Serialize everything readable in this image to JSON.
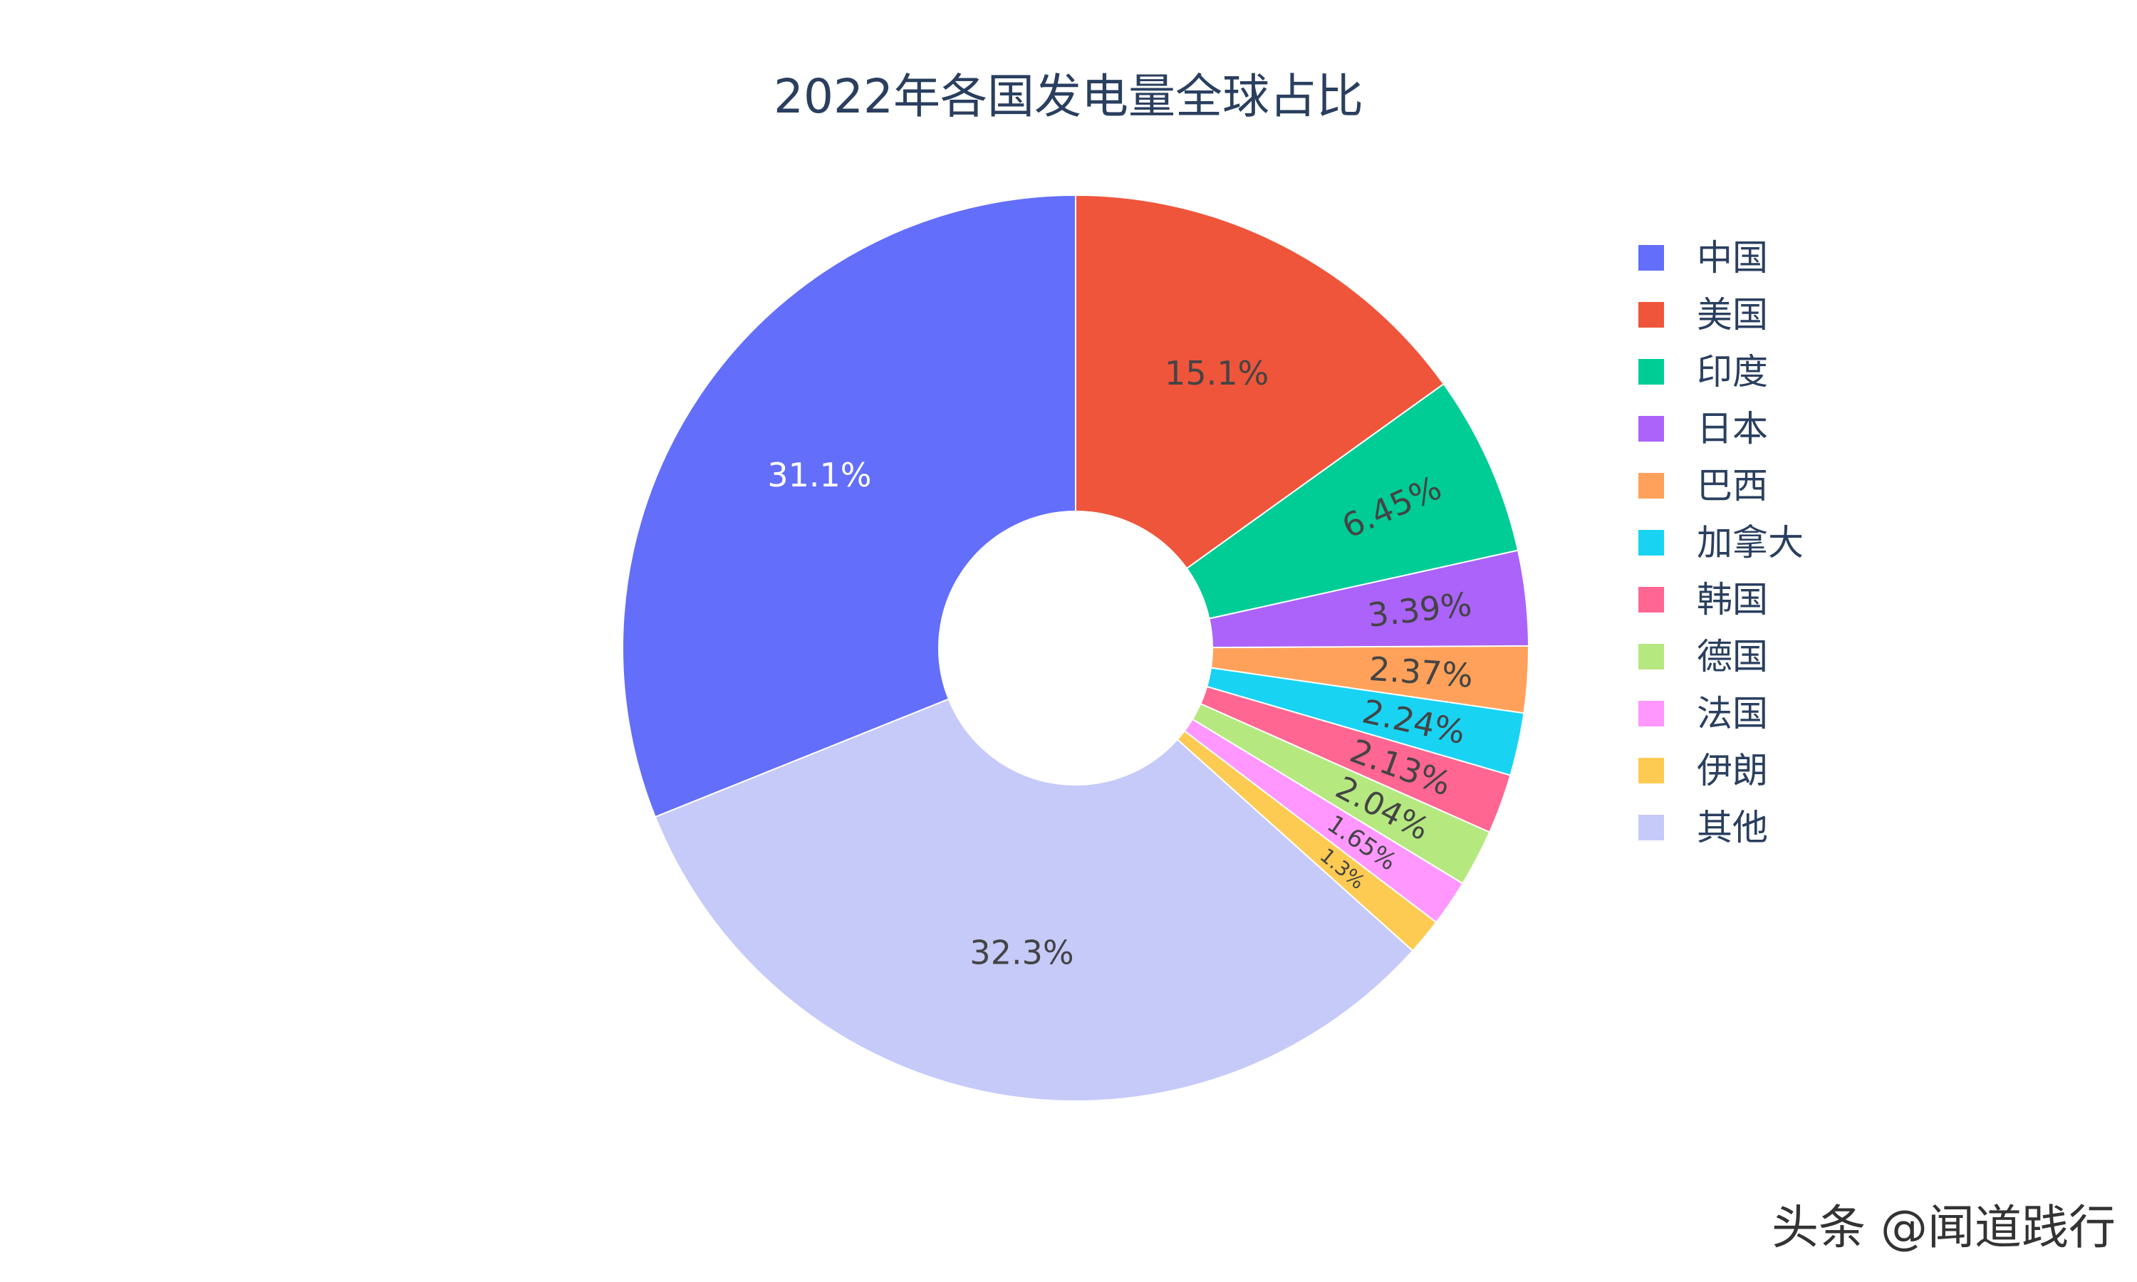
{
  "chart_data": {
    "type": "pie",
    "hole": true,
    "title": "2022年各国发电量全球占比",
    "slices": [
      {
        "label": "中国",
        "value": 31.1,
        "text": "31.1%",
        "color": "#636efa",
        "text_color": "#ffffff"
      },
      {
        "label": "其他",
        "value": 32.3,
        "text": "32.3%",
        "color": "#c6caf9",
        "text_color": "#444444"
      },
      {
        "label": "伊朗",
        "value": 1.3,
        "text": "1.3%",
        "color": "#fecb52",
        "text_color": "#444444"
      },
      {
        "label": "法国",
        "value": 1.65,
        "text": "1.65%",
        "color": "#ff97ff",
        "text_color": "#444444"
      },
      {
        "label": "德国",
        "value": 2.04,
        "text": "2.04%",
        "color": "#b6e880",
        "text_color": "#444444"
      },
      {
        "label": "韩国",
        "value": 2.13,
        "text": "2.13%",
        "color": "#ff6692",
        "text_color": "#444444"
      },
      {
        "label": "加拿大",
        "value": 2.24,
        "text": "2.24%",
        "color": "#19d3f3",
        "text_color": "#444444"
      },
      {
        "label": "巴西",
        "value": 2.37,
        "text": "2.37%",
        "color": "#ffa15a",
        "text_color": "#444444"
      },
      {
        "label": "日本",
        "value": 3.39,
        "text": "3.39%",
        "color": "#ab63fa",
        "text_color": "#444444"
      },
      {
        "label": "印度",
        "value": 6.45,
        "text": "6.45%",
        "color": "#00cc96",
        "text_color": "#444444"
      },
      {
        "label": "美国",
        "value": 15.1,
        "text": "15.1%",
        "color": "#ef553b",
        "text_color": "#444444"
      }
    ],
    "legend": {
      "placement": "right",
      "items": [
        {
          "label": "中国",
          "color": "#636efa"
        },
        {
          "label": "美国",
          "color": "#ef553b"
        },
        {
          "label": "印度",
          "color": "#00cc96"
        },
        {
          "label": "日本",
          "color": "#ab63fa"
        },
        {
          "label": "巴西",
          "color": "#ffa15a"
        },
        {
          "label": "加拿大",
          "color": "#19d3f3"
        },
        {
          "label": "韩国",
          "color": "#ff6692"
        },
        {
          "label": "德国",
          "color": "#b6e880"
        },
        {
          "label": "法国",
          "color": "#ff97ff"
        },
        {
          "label": "伊朗",
          "color": "#fecb52"
        },
        {
          "label": "其他",
          "color": "#c6caf9"
        }
      ]
    }
  },
  "watermark": "头条 @闻道践行"
}
